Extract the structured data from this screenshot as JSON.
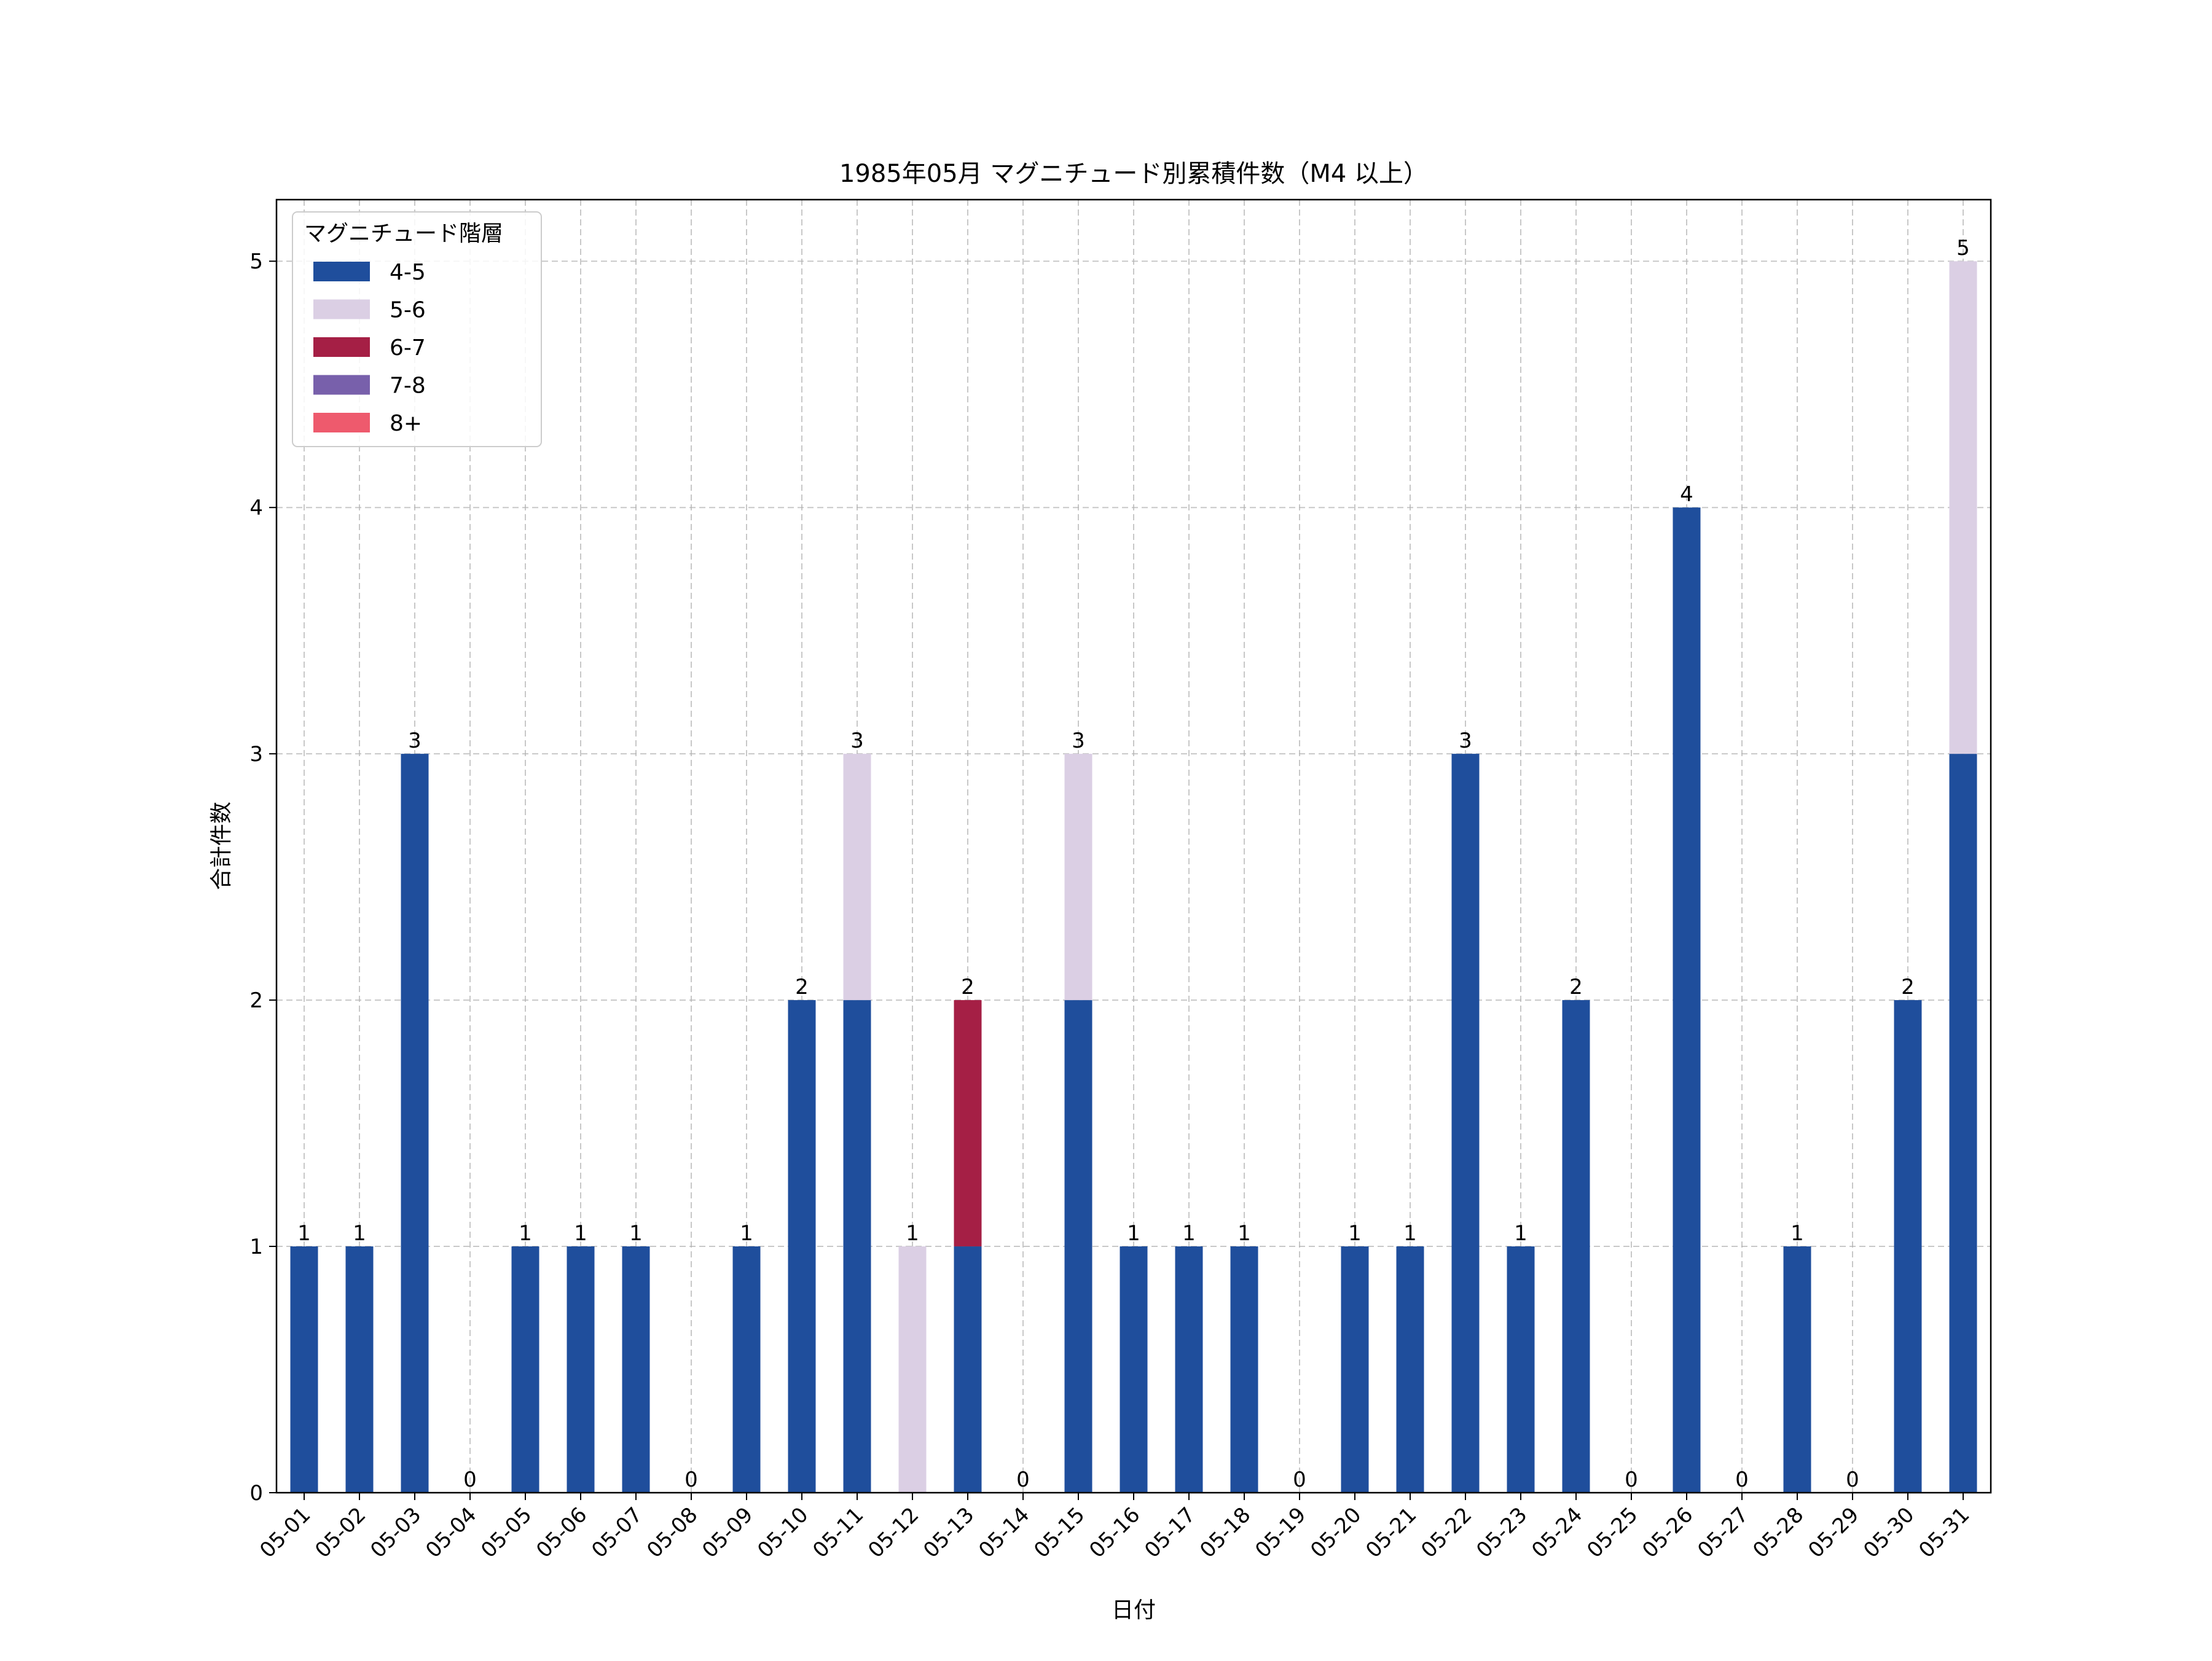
{
  "chart_data": {
    "type": "bar",
    "stacked": true,
    "title": "1985年05月 マグニチュード別累積件数（M4 以上）",
    "xlabel": "日付",
    "ylabel": "合計件数",
    "ylim": [
      0,
      5.25
    ],
    "yticks": [
      0,
      1,
      2,
      3,
      4,
      5
    ],
    "grid": true,
    "legend": {
      "title": "マグニチュード階層",
      "placement": "top-left"
    },
    "categories": [
      "05-01",
      "05-02",
      "05-03",
      "05-04",
      "05-05",
      "05-06",
      "05-07",
      "05-08",
      "05-09",
      "05-10",
      "05-11",
      "05-12",
      "05-13",
      "05-14",
      "05-15",
      "05-16",
      "05-17",
      "05-18",
      "05-19",
      "05-20",
      "05-21",
      "05-22",
      "05-23",
      "05-24",
      "05-25",
      "05-26",
      "05-27",
      "05-28",
      "05-29",
      "05-30",
      "05-31"
    ],
    "series": [
      {
        "name": "4-5",
        "color": "#1f4e9c",
        "values": [
          1,
          1,
          3,
          0,
          1,
          1,
          1,
          0,
          1,
          2,
          2,
          0,
          1,
          0,
          2,
          1,
          1,
          1,
          0,
          1,
          1,
          3,
          1,
          2,
          0,
          4,
          0,
          1,
          0,
          2,
          3
        ]
      },
      {
        "name": "5-6",
        "color": "#dbcfe4",
        "values": [
          0,
          0,
          0,
          0,
          0,
          0,
          0,
          0,
          0,
          0,
          1,
          1,
          0,
          0,
          1,
          0,
          0,
          0,
          0,
          0,
          0,
          0,
          0,
          0,
          0,
          0,
          0,
          0,
          0,
          0,
          2
        ]
      },
      {
        "name": "6-7",
        "color": "#a51f45",
        "values": [
          0,
          0,
          0,
          0,
          0,
          0,
          0,
          0,
          0,
          0,
          0,
          0,
          1,
          0,
          0,
          0,
          0,
          0,
          0,
          0,
          0,
          0,
          0,
          0,
          0,
          0,
          0,
          0,
          0,
          0,
          0
        ]
      },
      {
        "name": "7-8",
        "color": "#7860ab",
        "values": [
          0,
          0,
          0,
          0,
          0,
          0,
          0,
          0,
          0,
          0,
          0,
          0,
          0,
          0,
          0,
          0,
          0,
          0,
          0,
          0,
          0,
          0,
          0,
          0,
          0,
          0,
          0,
          0,
          0,
          0,
          0
        ]
      },
      {
        "name": "8+",
        "color": "#ee5a6d",
        "values": [
          0,
          0,
          0,
          0,
          0,
          0,
          0,
          0,
          0,
          0,
          0,
          0,
          0,
          0,
          0,
          0,
          0,
          0,
          0,
          0,
          0,
          0,
          0,
          0,
          0,
          0,
          0,
          0,
          0,
          0,
          0
        ]
      }
    ],
    "totals": [
      1,
      1,
      3,
      0,
      1,
      1,
      1,
      0,
      1,
      2,
      3,
      1,
      2,
      0,
      3,
      1,
      1,
      1,
      0,
      1,
      1,
      3,
      1,
      2,
      0,
      4,
      0,
      1,
      0,
      2,
      5
    ]
  }
}
